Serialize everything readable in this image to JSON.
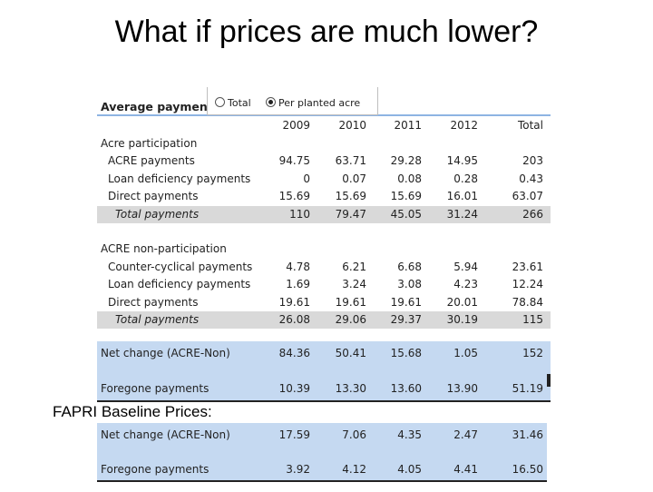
{
  "title": "What if prices are much lower?",
  "table": {
    "header_label": "Average payments",
    "radio_total": "Total",
    "radio_per_acre": "Per planted acre",
    "columns": [
      "2009",
      "2010",
      "2011",
      "2012",
      "Total"
    ],
    "section1": "Acre participation",
    "acre_rows": [
      {
        "label": "ACRE payments",
        "v": [
          "94.75",
          "63.71",
          "29.28",
          "14.95",
          "203"
        ]
      },
      {
        "label": "Loan deficiency payments",
        "v": [
          "0",
          "0.07",
          "0.08",
          "0.28",
          "0.43"
        ]
      },
      {
        "label": "Direct payments",
        "v": [
          "15.69",
          "15.69",
          "15.69",
          "16.01",
          "63.07"
        ]
      }
    ],
    "acre_total": {
      "label": "Total payments",
      "v": [
        "110",
        "79.47",
        "45.05",
        "31.24",
        "266"
      ]
    },
    "section2": "ACRE non-participation",
    "non_rows": [
      {
        "label": "Counter-cyclical payments",
        "v": [
          "4.78",
          "6.21",
          "6.68",
          "5.94",
          "23.61"
        ]
      },
      {
        "label": "Loan deficiency payments",
        "v": [
          "1.69",
          "3.24",
          "3.08",
          "4.23",
          "12.24"
        ]
      },
      {
        "label": "Direct payments",
        "v": [
          "19.61",
          "19.61",
          "19.61",
          "20.01",
          "78.84"
        ]
      }
    ],
    "non_total": {
      "label": "Total payments",
      "v": [
        "26.08",
        "29.06",
        "29.37",
        "30.19",
        "115"
      ]
    },
    "net_change": {
      "label": "Net change (ACRE-Non)",
      "v": [
        "84.36",
        "50.41",
        "15.68",
        "1.05",
        "152"
      ]
    },
    "foregone": {
      "label": "Foregone payments",
      "v": [
        "10.39",
        "13.30",
        "13.60",
        "13.90",
        "51.19"
      ]
    }
  },
  "fapri_label": "FAPRI Baseline Prices:",
  "fapri": {
    "net_change": {
      "label": "Net change (ACRE-Non)",
      "v": [
        "17.59",
        "7.06",
        "4.35",
        "2.47",
        "31.46"
      ]
    },
    "foregone": {
      "label": "Foregone payments",
      "v": [
        "3.92",
        "4.12",
        "4.05",
        "4.41",
        "16.50"
      ]
    }
  }
}
